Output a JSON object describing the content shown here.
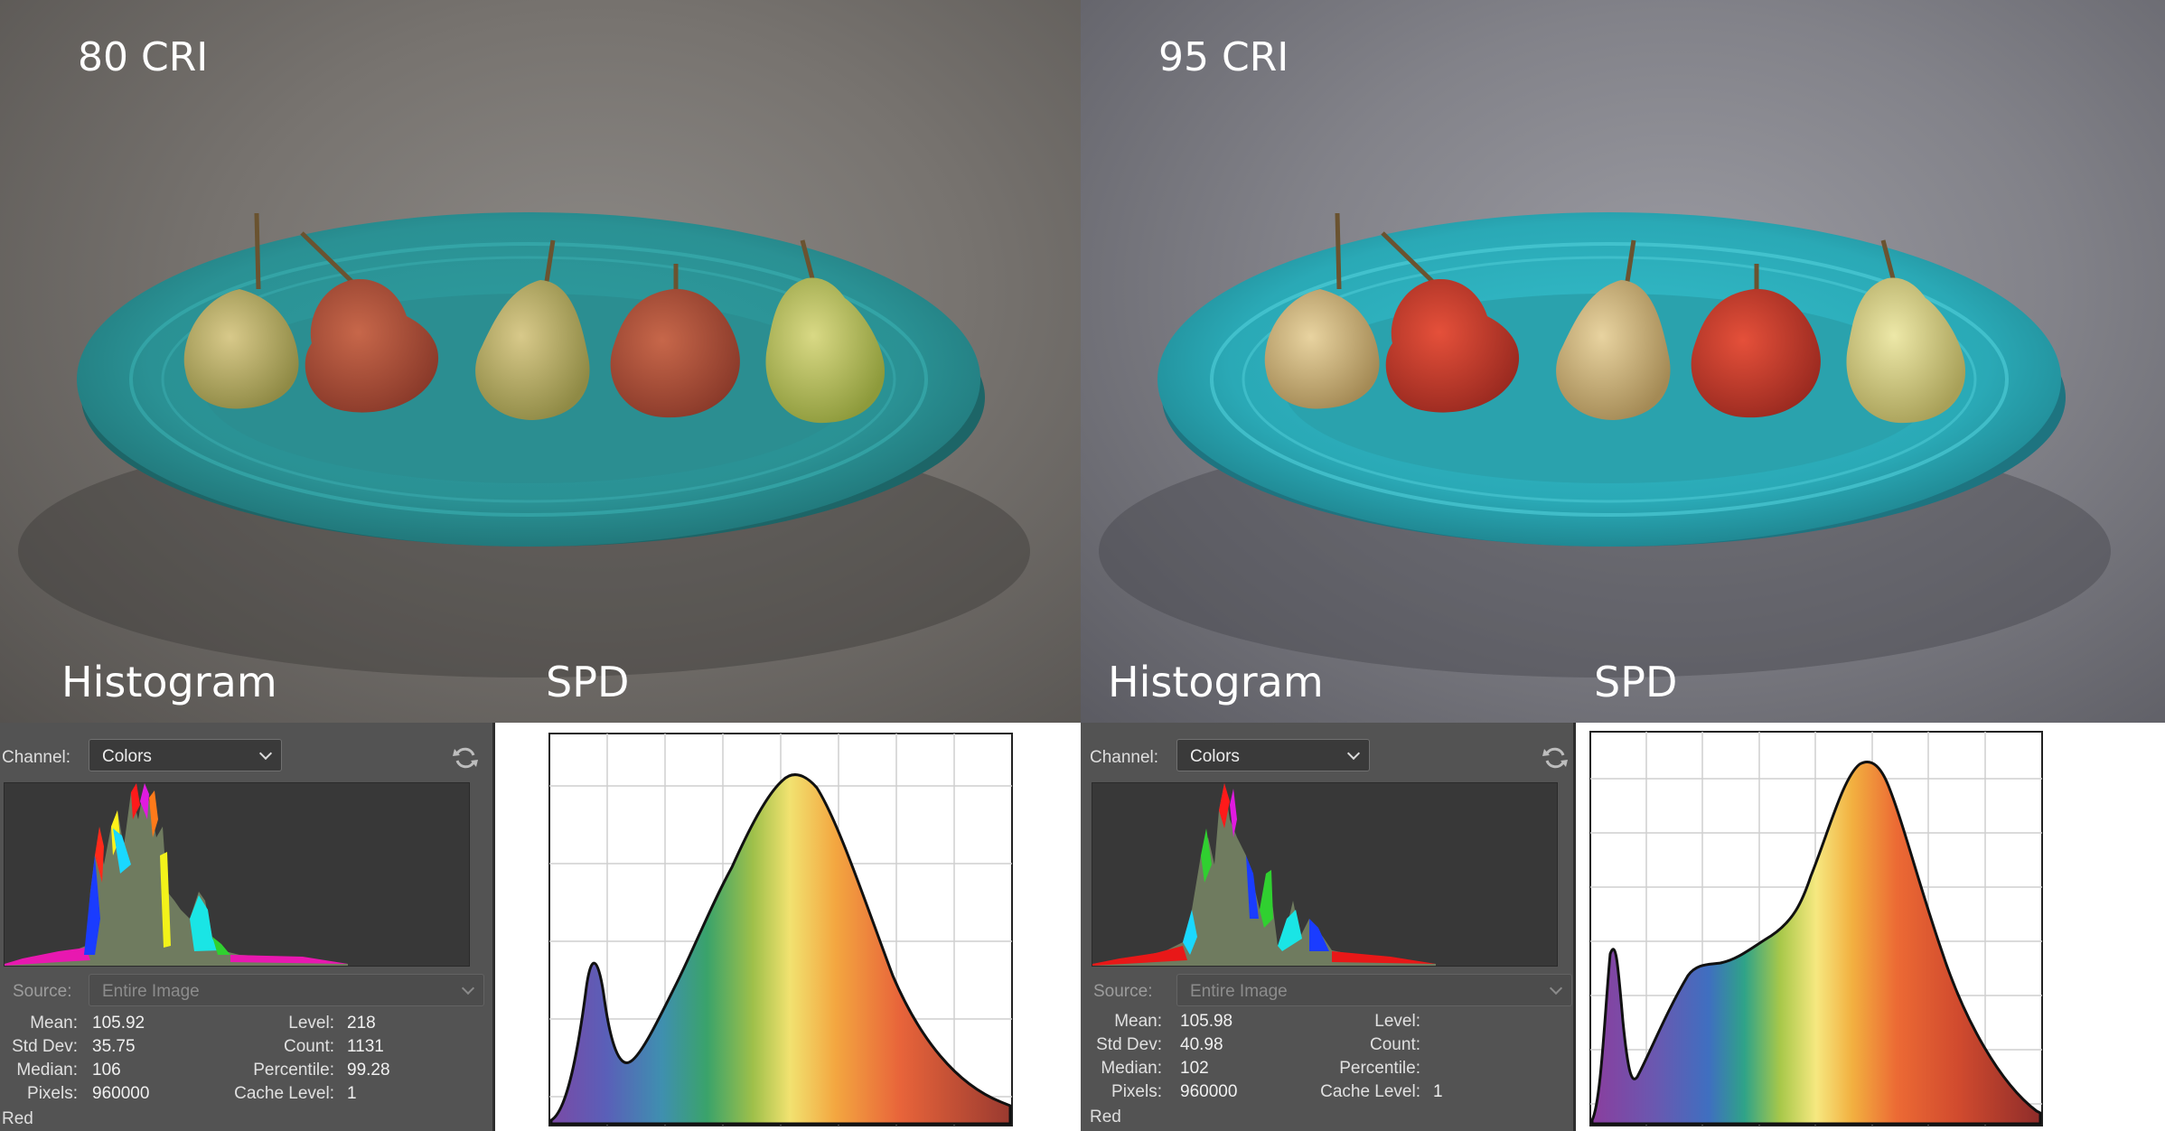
{
  "panels": [
    {
      "title": "80 CRI",
      "label_histogram": "Histogram",
      "label_spd": "SPD",
      "histogram": {
        "channel_label": "Channel:",
        "channel_value": "Colors",
        "source_label": "Source:",
        "source_value": "Entire Image",
        "stats": {
          "mean_label": "Mean:",
          "mean": "105.92",
          "std_label": "Std Dev:",
          "std": "35.75",
          "median_label": "Median:",
          "median": "106",
          "pixels_label": "Pixels:",
          "pixels": "960000",
          "level_label": "Level:",
          "level": "218",
          "count_label": "Count:",
          "count": "1131",
          "percentile_label": "Percentile:",
          "percentile": "99.28",
          "cache_label": "Cache Level:",
          "cache": "1"
        },
        "footer": "Red"
      }
    },
    {
      "title": "95 CRI",
      "label_histogram": "Histogram",
      "label_spd": "SPD",
      "histogram": {
        "channel_label": "Channel:",
        "channel_value": "Colors",
        "source_label": "Source:",
        "source_value": "Entire Image",
        "stats": {
          "mean_label": "Mean:",
          "mean": "105.98",
          "std_label": "Std Dev:",
          "std": "40.98",
          "median_label": "Median:",
          "median": "102",
          "pixels_label": "Pixels:",
          "pixels": "960000",
          "level_label": "Level:",
          "level": "",
          "count_label": "Count:",
          "count": "",
          "percentile_label": "Percentile:",
          "percentile": "",
          "cache_label": "Cache Level:",
          "cache": "1"
        },
        "footer": "Red"
      }
    }
  ],
  "colors": {
    "plate": "#2a9ea3",
    "plate_right": "#2bb6c4",
    "panel_bg": "#535353",
    "graph_bg": "#383838"
  },
  "icons": [
    "refresh-icon",
    "chevron-down-icon"
  ]
}
